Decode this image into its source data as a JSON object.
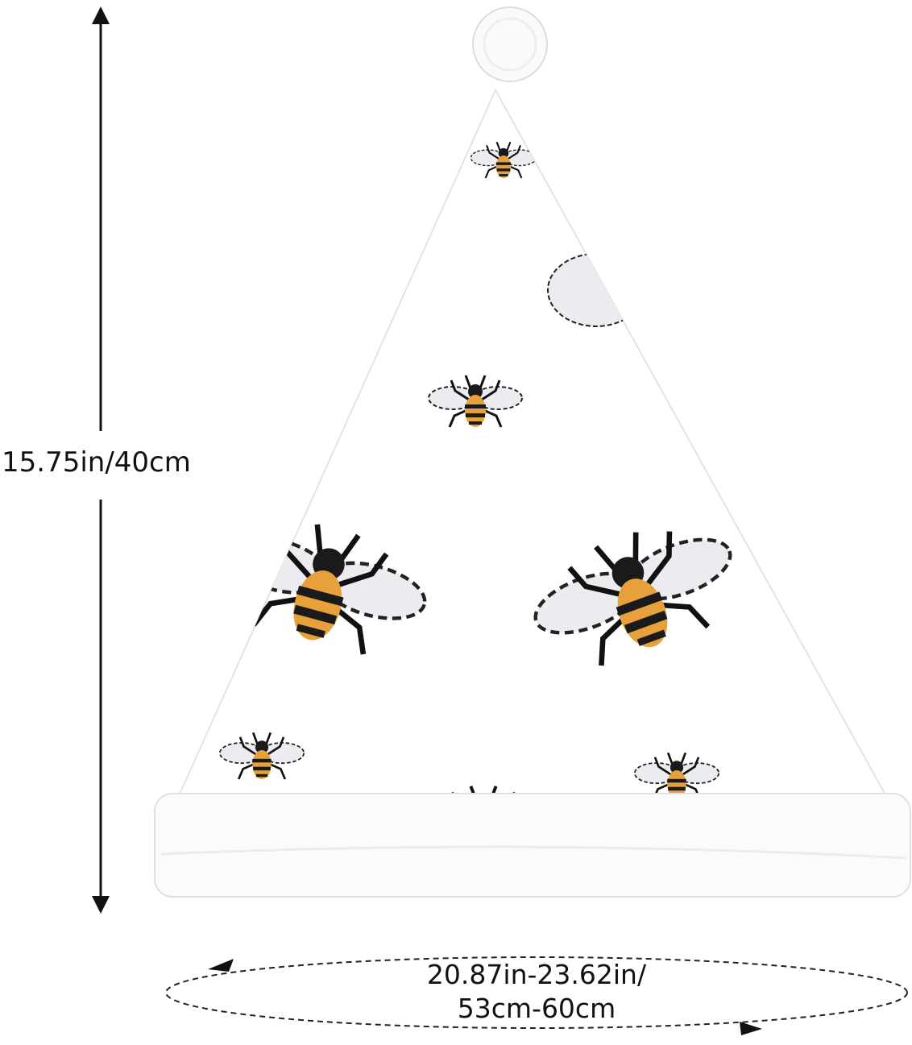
{
  "product": {
    "pattern": "bees",
    "height_label": "15.75in/40cm",
    "circumference_label_line1": "20.87in-23.62in/",
    "circumference_label_line2": "53cm-60cm"
  },
  "colors": {
    "hat": "#ffffff",
    "bee_stripe": "#e8a13a",
    "bee_dark": "#1a1a1a",
    "wing": "#ecebef"
  }
}
